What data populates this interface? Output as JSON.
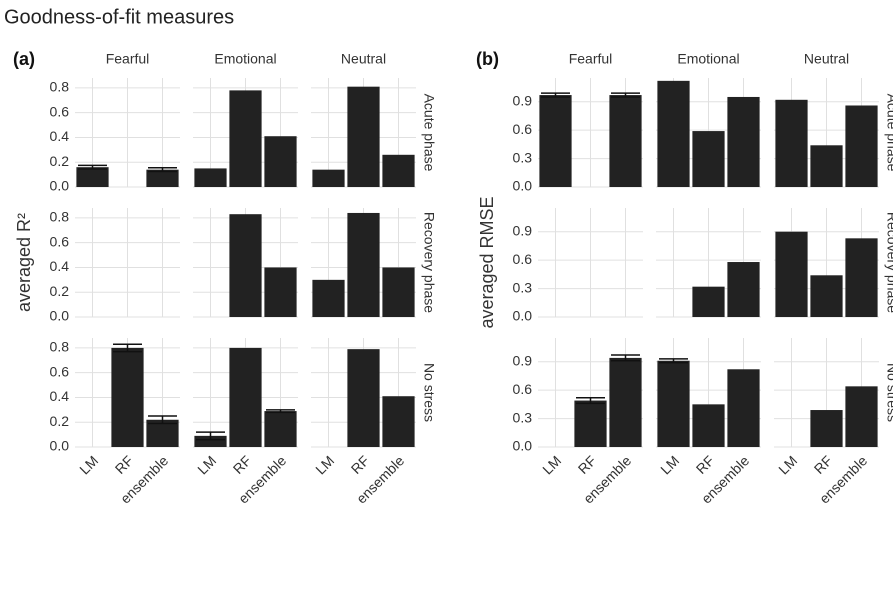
{
  "title": "Goodness-of-fit measures",
  "chart_data": [
    {
      "type": "bar",
      "label": "(a)",
      "ylabel": "averaged R²",
      "color": "#222222",
      "columns": [
        "Fearful",
        "Emotional",
        "Neutral"
      ],
      "rows": [
        "Acute phase",
        "Recovery phase",
        "No stress"
      ],
      "categories": [
        "LM",
        "RF",
        "ensemble"
      ],
      "ylim": [
        0,
        0.88
      ],
      "yticks": [
        {
          "value": 0,
          "label": "0.0"
        },
        0.2,
        0.4,
        0.6,
        0.8
      ],
      "grid": true,
      "values": [
        [
          [
            0.16,
            null,
            0.14
          ],
          [
            0.15,
            0.78,
            0.41
          ],
          [
            0.14,
            0.81,
            0.26
          ]
        ],
        [
          [
            null,
            null,
            null
          ],
          [
            null,
            0.83,
            0.4
          ],
          [
            0.3,
            0.84,
            0.4
          ]
        ],
        [
          [
            null,
            0.8,
            0.22
          ],
          [
            0.09,
            0.8,
            0.29
          ],
          [
            null,
            0.79,
            0.41
          ]
        ]
      ],
      "errors": [
        [
          [
            0.015,
            null,
            0.015
          ],
          [
            null,
            null,
            null
          ],
          [
            null,
            null,
            null
          ]
        ],
        [
          [
            null,
            null,
            null
          ],
          [
            null,
            null,
            null
          ],
          [
            null,
            null,
            null
          ]
        ],
        [
          [
            null,
            0.03,
            0.03
          ],
          [
            0.03,
            null,
            0.01
          ],
          [
            null,
            null,
            null
          ]
        ]
      ]
    },
    {
      "type": "bar",
      "label": "(b)",
      "ylabel": "averaged RMSE",
      "color": "#222222",
      "columns": [
        "Fearful",
        "Emotional",
        "Neutral"
      ],
      "rows": [
        "Acute phase",
        "Recovery phase",
        "No stress"
      ],
      "categories": [
        "LM",
        "RF",
        "ensemble"
      ],
      "ylim": [
        0,
        1.15
      ],
      "yticks": [
        {
          "value": 0,
          "label": "0.0"
        },
        0.3,
        0.6,
        0.9
      ],
      "grid": true,
      "values": [
        [
          [
            0.97,
            null,
            0.97
          ],
          [
            1.12,
            0.59,
            0.95
          ],
          [
            0.92,
            0.44,
            0.86
          ]
        ],
        [
          [
            null,
            null,
            null
          ],
          [
            null,
            0.32,
            0.58
          ],
          [
            0.9,
            0.44,
            0.83
          ]
        ],
        [
          [
            null,
            0.49,
            0.94
          ],
          [
            0.91,
            0.45,
            0.82
          ],
          [
            null,
            0.39,
            0.64
          ]
        ]
      ],
      "errors": [
        [
          [
            0.02,
            null,
            0.02
          ],
          [
            null,
            null,
            null
          ],
          [
            null,
            null,
            null
          ]
        ],
        [
          [
            null,
            null,
            null
          ],
          [
            null,
            null,
            null
          ],
          [
            null,
            null,
            null
          ]
        ],
        [
          [
            null,
            0.03,
            0.03
          ],
          [
            0.02,
            null,
            null
          ],
          [
            null,
            null,
            null
          ]
        ]
      ]
    }
  ]
}
